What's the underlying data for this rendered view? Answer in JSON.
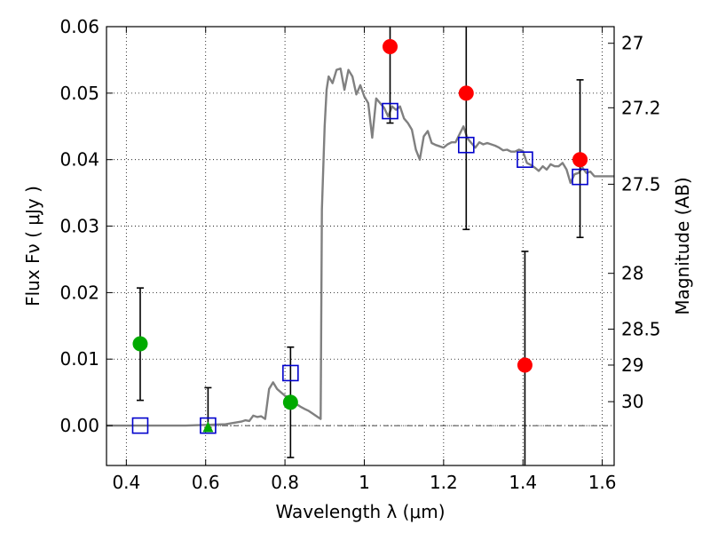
{
  "chart_data": {
    "type": "scatter",
    "title": "",
    "xlabel": "Wavelength  λ (μm)",
    "ylabel": "Flux  Fν  ( μJy )",
    "y2label": "Magnitude (AB)",
    "xlim": [
      0.35,
      1.63
    ],
    "ylim": [
      -0.006,
      0.06
    ],
    "grid": true,
    "x_ticks": [
      0.4,
      0.6,
      0.8,
      1.0,
      1.2,
      1.4,
      1.6
    ],
    "x_tick_labels": [
      "0.4",
      "0.6",
      "0.8",
      "1",
      "1.2",
      "1.4",
      "1.6"
    ],
    "y_ticks": [
      0.0,
      0.01,
      0.02,
      0.03,
      0.04,
      0.05,
      0.06
    ],
    "y_tick_labels": [
      "0.00",
      "0.01",
      "0.02",
      "0.03",
      "0.04",
      "0.05",
      "0.06"
    ],
    "y2_ticks": [
      {
        "label": "27",
        "flux": 0.0575
      },
      {
        "label": "27.2",
        "flux": 0.0478
      },
      {
        "label": "27.5",
        "flux": 0.0363
      },
      {
        "label": "28",
        "flux": 0.0229
      },
      {
        "label": "28.5",
        "flux": 0.0145
      },
      {
        "label": "29",
        "flux": 0.0091
      },
      {
        "label": "30",
        "flux": 0.0036
      }
    ],
    "colors": {
      "model": "#808080",
      "detection": "#ff0000",
      "nondetection": "#00aa00",
      "model_photometry": "#0000cc",
      "errorbar": "#000000"
    },
    "series": [
      {
        "type": "line",
        "role": "model",
        "x": [
          0.35,
          0.55,
          0.6,
          0.65,
          0.69,
          0.7,
          0.71,
          0.72,
          0.73,
          0.74,
          0.75,
          0.76,
          0.77,
          0.78,
          0.79,
          0.8,
          0.81,
          0.82,
          0.83,
          0.84,
          0.85,
          0.86,
          0.87,
          0.88,
          0.89,
          0.893,
          0.9,
          0.905,
          0.91,
          0.92,
          0.93,
          0.94,
          0.95,
          0.96,
          0.97,
          0.98,
          0.99,
          1.0,
          1.01,
          1.02,
          1.03,
          1.04,
          1.05,
          1.06,
          1.07,
          1.08,
          1.09,
          1.1,
          1.11,
          1.12,
          1.13,
          1.14,
          1.15,
          1.16,
          1.17,
          1.18,
          1.19,
          1.2,
          1.21,
          1.22,
          1.23,
          1.24,
          1.25,
          1.26,
          1.27,
          1.28,
          1.29,
          1.3,
          1.31,
          1.32,
          1.33,
          1.34,
          1.35,
          1.36,
          1.37,
          1.38,
          1.39,
          1.4,
          1.41,
          1.42,
          1.43,
          1.44,
          1.45,
          1.46,
          1.47,
          1.48,
          1.49,
          1.5,
          1.51,
          1.52,
          1.53,
          1.54,
          1.55,
          1.56,
          1.57,
          1.58,
          1.6,
          1.63
        ],
        "y": [
          0.0,
          0.0,
          0.0001,
          0.0002,
          0.0006,
          0.0008,
          0.0007,
          0.0015,
          0.0013,
          0.0014,
          0.001,
          0.0055,
          0.0065,
          0.0055,
          0.005,
          0.0045,
          0.0042,
          0.0035,
          0.0032,
          0.0028,
          0.0025,
          0.0022,
          0.0018,
          0.0014,
          0.001,
          0.0325,
          0.045,
          0.0505,
          0.0525,
          0.0515,
          0.0535,
          0.0537,
          0.0505,
          0.0535,
          0.0525,
          0.0498,
          0.0512,
          0.0495,
          0.0485,
          0.0433,
          0.0492,
          0.0485,
          0.0478,
          0.0465,
          0.048,
          0.0475,
          0.048,
          0.0462,
          0.0455,
          0.0445,
          0.0415,
          0.04,
          0.0435,
          0.0443,
          0.0425,
          0.0422,
          0.042,
          0.0418,
          0.0423,
          0.0426,
          0.0426,
          0.0438,
          0.045,
          0.0432,
          0.0425,
          0.0418,
          0.0426,
          0.0423,
          0.0425,
          0.0423,
          0.0421,
          0.0418,
          0.0414,
          0.0415,
          0.0412,
          0.0412,
          0.0415,
          0.0413,
          0.0395,
          0.0392,
          0.0388,
          0.0383,
          0.039,
          0.0385,
          0.0393,
          0.039,
          0.039,
          0.0395,
          0.0385,
          0.0365,
          0.0378,
          0.038,
          0.0388,
          0.038,
          0.0382,
          0.0375,
          0.0375,
          0.0375
        ]
      },
      {
        "type": "scatter",
        "role": "detection",
        "marker": "circle",
        "x": [
          1.065,
          1.257,
          1.405,
          1.544
        ],
        "y": [
          0.057,
          0.05,
          0.0091,
          0.04
        ],
        "err_low": [
          0.0455,
          0.0295,
          -0.0065,
          0.0283
        ],
        "err_high": [
          0.062,
          0.062,
          0.0262,
          0.052
        ]
      },
      {
        "type": "scatter",
        "role": "nondetection",
        "marker": "circle",
        "x": [
          0.435,
          0.814
        ],
        "y": [
          0.0123,
          0.0035
        ],
        "err_low": [
          0.0038,
          -0.0048
        ],
        "err_high": [
          0.0207,
          0.0118
        ]
      },
      {
        "type": "scatter",
        "role": "nondetection",
        "marker": "triangle",
        "x": [
          0.606
        ],
        "y": [
          -0.0003
        ],
        "err_low": [
          -0.0003
        ],
        "err_high": [
          0.0057
        ]
      },
      {
        "type": "scatter",
        "role": "model_photometry",
        "marker": "open-square",
        "x": [
          0.435,
          0.606,
          0.814,
          1.065,
          1.257,
          1.405,
          1.544
        ],
        "y": [
          0.0,
          0.0,
          0.0079,
          0.0473,
          0.0422,
          0.04,
          0.0374
        ]
      }
    ]
  }
}
